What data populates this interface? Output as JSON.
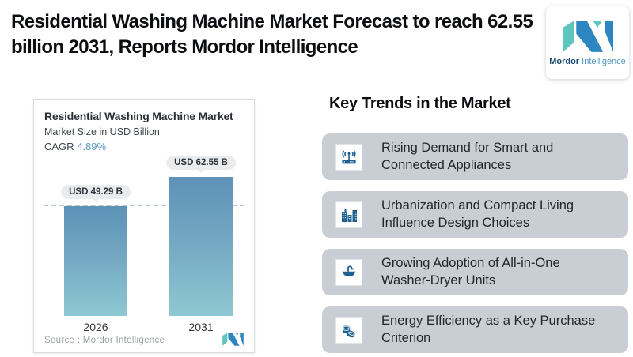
{
  "page": {
    "background": "#ffffff",
    "accent_blue": "#2e86c1",
    "accent_teal": "#5ec5c0",
    "icon_blue": "#1d6090",
    "trend_card_bg": "#c9ced5"
  },
  "header": {
    "title": "Residential Washing Machine Market Forecast to reach 62.55 billion 2031, Reports Mordor Intelligence"
  },
  "logo": {
    "brand_bold": "Mordor",
    "brand_light": "Intelligence"
  },
  "chart_card": {
    "title": "Residential Washing Machine Market",
    "subtitle": "Market Size in USD Billion",
    "cagr_label": "CAGR",
    "cagr_value": "4.89%",
    "source_label": "Source : Mordor Intelligence"
  },
  "chart_data": {
    "type": "bar",
    "title": "Residential Washing Machine Market",
    "subtitle": "Market Size in USD Billion",
    "cagr": "4.89%",
    "unit": "USD Billion",
    "categories": [
      "2026",
      "2031"
    ],
    "values": [
      49.29,
      62.55
    ],
    "value_labels": [
      "USD 49.29 B",
      "USD 62.55 B"
    ],
    "reference_dashed_line_at": 49.29,
    "bar_gradient_top": "#5e92b7",
    "bar_gradient_bottom": "#8fc8d2",
    "grid": false,
    "legend": false
  },
  "trends": {
    "heading": "Key Trends in the Market",
    "items": [
      {
        "icon": "wifi-router-icon",
        "text": "Rising Demand for Smart and Connected Appliances"
      },
      {
        "icon": "buildings-icon",
        "text": "Urbanization and Compact Living Influence Design Choices"
      },
      {
        "icon": "washbasin-icon",
        "text": "Growing Adoption of All-in-One Washer-Dryer Units"
      },
      {
        "icon": "coins-icon",
        "text": "Energy Efficiency as a Key Purchase Criterion"
      }
    ]
  }
}
